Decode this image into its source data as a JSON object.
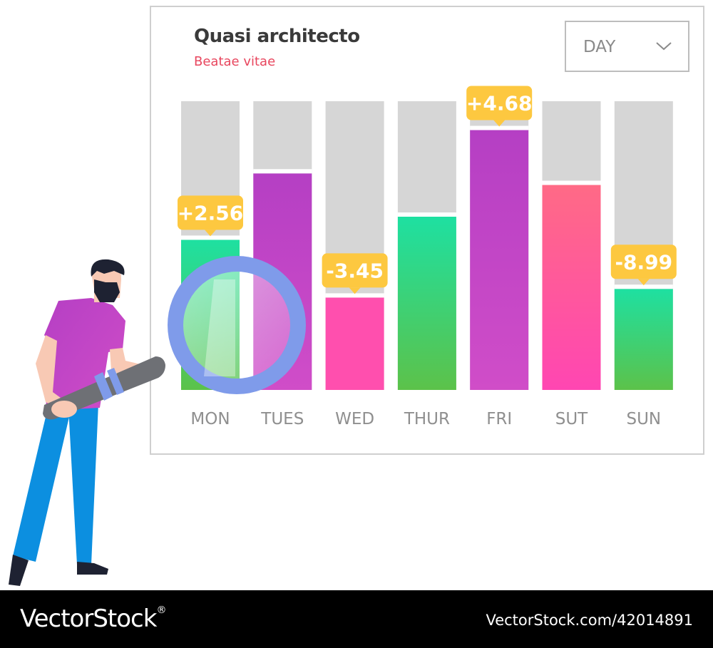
{
  "dropdown": {
    "value": "DAY",
    "icon": "chevron-down-icon"
  },
  "chart_data": {
    "type": "bar",
    "title": "Quasi architecto",
    "subtitle": "Beatae vitae",
    "categories": [
      "MON",
      "TUES",
      "WED",
      "THUR",
      "FRI",
      "SUT",
      "SUN"
    ],
    "values": [
      0.52,
      0.75,
      0.32,
      0.6,
      0.9,
      0.71,
      0.35
    ],
    "ylim": [
      0,
      1
    ],
    "callouts": [
      {
        "category": "MON",
        "text": "+2.56"
      },
      {
        "category": "WED",
        "text": "-3.45"
      },
      {
        "category": "FRI",
        "text": "+4.68"
      },
      {
        "category": "SUN",
        "text": "-8.99"
      }
    ],
    "bar_gradients": [
      [
        "#1ee0a1",
        "#5cc24a"
      ],
      [
        "#b53fc4",
        "#d04dc8"
      ],
      [
        "#ff4fae",
        "#ff4fae"
      ],
      [
        "#1ee0a1",
        "#5cc24a"
      ],
      [
        "#b53fc4",
        "#d04dc8"
      ],
      [
        "#ff6a86",
        "#ff46b2"
      ],
      [
        "#1ee0a1",
        "#5cc24a"
      ]
    ],
    "track_color": "#d6d6d6",
    "callout_color": "#fdc840",
    "grid": false,
    "legend": "none"
  },
  "illustration": {
    "subject": "man-holding-magnifying-glass"
  },
  "footer": {
    "brand": "VectorStock",
    "brand_mark": "®",
    "image_id": "VectorStock.com/42014891"
  }
}
